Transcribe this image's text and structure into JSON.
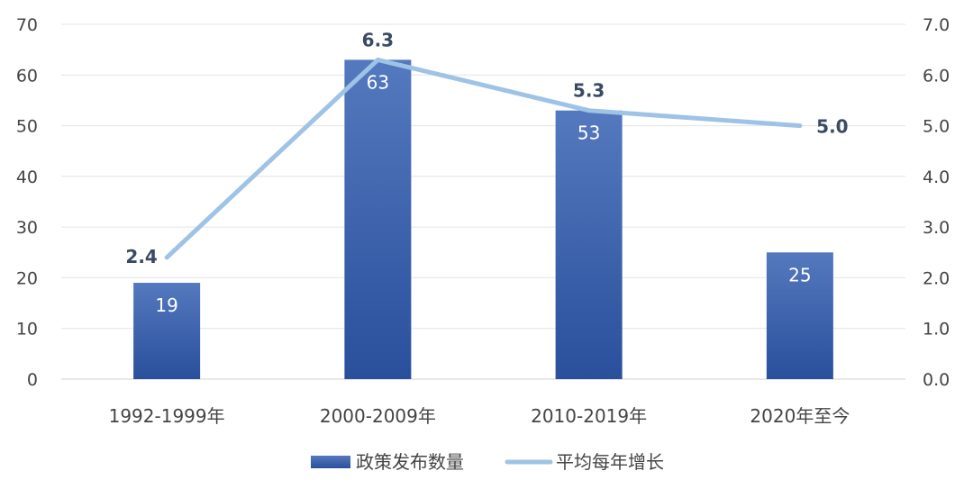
{
  "chart_data": {
    "type": "bar",
    "categories": [
      "1992-1999年",
      "2000-2009年",
      "2010-2019年",
      "2020年至今"
    ],
    "series": [
      {
        "name": "政策发布数量",
        "type": "bar",
        "axis": "left",
        "values": [
          19,
          63,
          53,
          25
        ],
        "color": "#3a62ad"
      },
      {
        "name": "平均每年增长",
        "type": "line",
        "axis": "right",
        "values": [
          2.4,
          6.3,
          5.3,
          5.0
        ],
        "labels": [
          "2.4",
          "6.3",
          "5.3",
          "5.0"
        ],
        "color": "#9ec3e6"
      }
    ],
    "y_left": {
      "range": [
        0,
        70
      ],
      "ticks": [
        "0",
        "10",
        "20",
        "30",
        "40",
        "50",
        "60",
        "70"
      ]
    },
    "y_right": {
      "range": [
        0,
        7
      ],
      "ticks": [
        "0.0",
        "1.0",
        "2.0",
        "3.0",
        "4.0",
        "5.0",
        "6.0",
        "7.0"
      ]
    },
    "grid": true,
    "legend_position": "bottom"
  }
}
